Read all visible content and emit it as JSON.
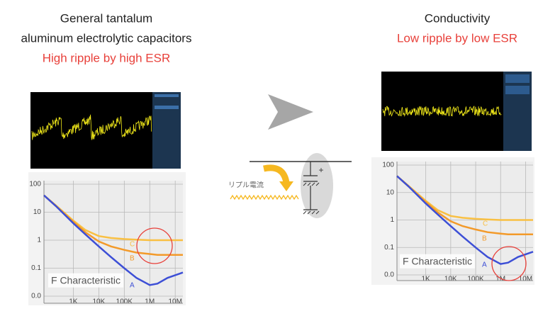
{
  "left_panel": {
    "heading": [
      "General tantalum",
      "aluminum electrolytic capacitors"
    ],
    "note": "High ripple by high ESR"
  },
  "right_panel": {
    "heading": [
      "Conductivity"
    ],
    "note": "Low ripple by low ESR"
  },
  "circuit": {
    "label": "リプル電流",
    "polarity": "+"
  },
  "chart_data": [
    {
      "type": "line",
      "annotation": "F Characteristic",
      "log_x": true,
      "log_y": true,
      "grid": true,
      "x": [
        70,
        200,
        1000,
        3000,
        10000,
        30000,
        100000,
        300000,
        1000000,
        2000000,
        5000000,
        20000000
      ],
      "xlim": [
        70,
        20000000
      ],
      "xticks": [
        {
          "value": 1000,
          "label": "1K"
        },
        {
          "value": 10000,
          "label": "10K"
        },
        {
          "value": 100000,
          "label": "100K"
        },
        {
          "value": 1000000,
          "label": "1M"
        },
        {
          "value": 10000000,
          "label": "10M"
        }
      ],
      "ylim": [
        0.01,
        100
      ],
      "yticks": [
        100,
        10,
        1,
        0.1,
        {
          "value": 0.01,
          "label": "0.0"
        }
      ],
      "series": [
        {
          "name": "A",
          "color": "#3d4fd6",
          "values": [
            40,
            17,
            4,
            1.6,
            0.6,
            0.25,
            0.1,
            0.045,
            0.025,
            0.028,
            0.045,
            0.07
          ]
        },
        {
          "name": "B",
          "color": "#f39a2a",
          "values": [
            40,
            17,
            4.5,
            1.9,
            0.9,
            0.6,
            0.45,
            0.36,
            0.32,
            0.3,
            0.3,
            0.3
          ]
        },
        {
          "name": "C",
          "color": "#f9c043",
          "values": [
            40,
            18,
            5,
            2.3,
            1.4,
            1.2,
            1.1,
            1.05,
            1,
            1,
            1,
            1
          ]
        }
      ]
    },
    {
      "type": "line",
      "annotation": "F Characteristic",
      "log_x": true,
      "log_y": true,
      "grid": true,
      "x": [
        70,
        200,
        1000,
        3000,
        10000,
        30000,
        100000,
        300000,
        1000000,
        2000000,
        5000000,
        20000000
      ],
      "xlim": [
        70,
        20000000
      ],
      "xticks": [
        {
          "value": 1000,
          "label": "1K"
        },
        {
          "value": 10000,
          "label": "10K"
        },
        {
          "value": 100000,
          "label": "100K"
        },
        {
          "value": 1000000,
          "label": "1M"
        },
        {
          "value": 10000000,
          "label": "10M"
        }
      ],
      "ylim": [
        0.01,
        100
      ],
      "yticks": [
        100,
        10,
        1,
        0.1,
        {
          "value": 0.01,
          "label": "0.0"
        }
      ],
      "series": [
        {
          "name": "A",
          "color": "#3d4fd6",
          "values": [
            40,
            17,
            4,
            1.6,
            0.6,
            0.25,
            0.1,
            0.045,
            0.025,
            0.028,
            0.045,
            0.07
          ]
        },
        {
          "name": "B",
          "color": "#f39a2a",
          "values": [
            40,
            17,
            4.5,
            1.9,
            0.9,
            0.6,
            0.45,
            0.36,
            0.32,
            0.3,
            0.3,
            0.3
          ]
        },
        {
          "name": "C",
          "color": "#f9c043",
          "values": [
            40,
            18,
            5,
            2.3,
            1.4,
            1.2,
            1.1,
            1.05,
            1,
            1,
            1,
            1
          ]
        }
      ]
    }
  ]
}
